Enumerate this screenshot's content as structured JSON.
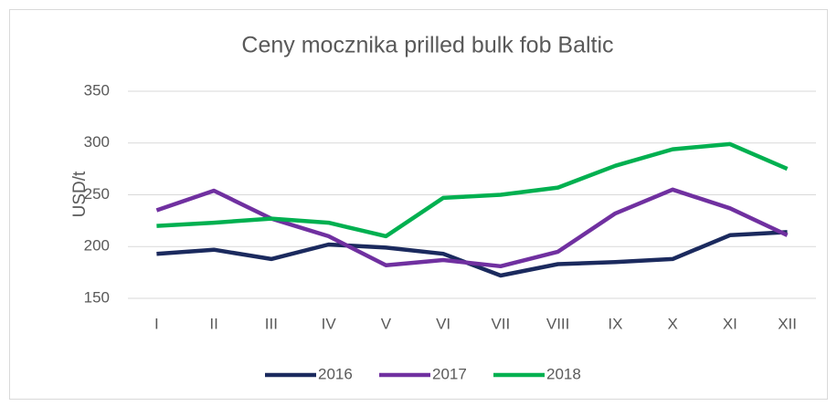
{
  "chart_data": {
    "type": "line",
    "title": "Ceny mocznika prilled bulk fob Baltic",
    "y_label": "USD/t",
    "categories": [
      "I",
      "II",
      "III",
      "IV",
      "V",
      "VI",
      "VII",
      "VIII",
      "IX",
      "X",
      "XI",
      "XII"
    ],
    "series": [
      {
        "name": "2016",
        "color": "#1b2a5e",
        "values": [
          193,
          197,
          188,
          202,
          199,
          193,
          172,
          183,
          185,
          188,
          211,
          214
        ]
      },
      {
        "name": "2017",
        "color": "#7030a0",
        "values": [
          235,
          254,
          227,
          210,
          182,
          187,
          181,
          195,
          232,
          255,
          237,
          211
        ]
      },
      {
        "name": "2018",
        "color": "#00b050",
        "values": [
          220,
          223,
          227,
          223,
          210,
          247,
          250,
          257,
          278,
          294,
          299,
          275
        ]
      }
    ],
    "ylim": [
      150,
      350
    ],
    "yticks": [
      150,
      200,
      250,
      300,
      350
    ],
    "grid": true,
    "legend": "bottom"
  }
}
